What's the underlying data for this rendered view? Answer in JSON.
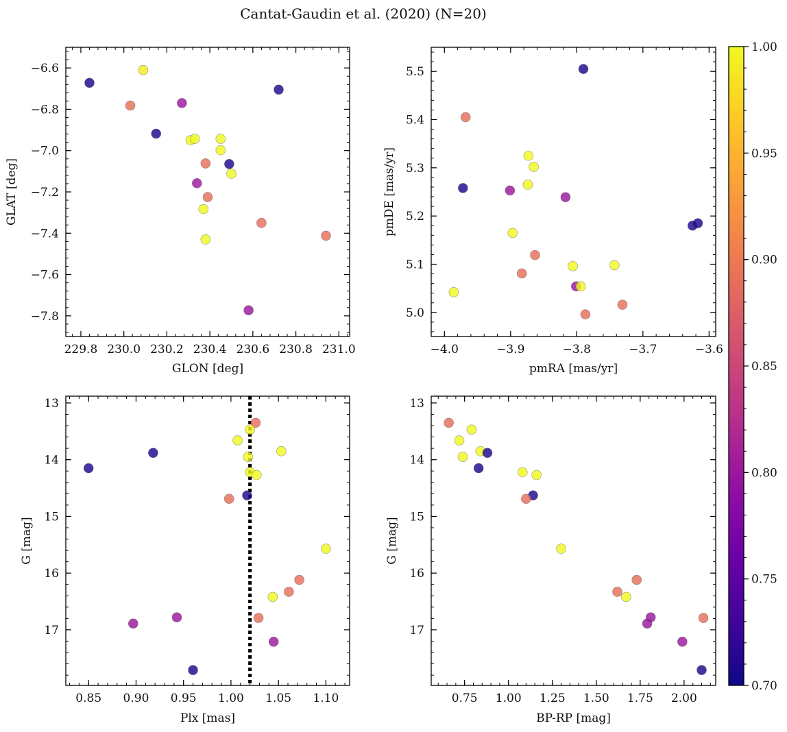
{
  "figure": {
    "title": "Cantat-Gaudin et al. (2020) (N=20)"
  },
  "colorbar": {
    "ticks": [
      0.7,
      0.75,
      0.8,
      0.85,
      0.9,
      0.95,
      1.0
    ],
    "tick_labels": [
      "0.70",
      "0.75",
      "0.80",
      "0.85",
      "0.90",
      "0.95",
      "1.00"
    ],
    "range": [
      0.7,
      1.0
    ],
    "colormap": "plasma"
  },
  "chart_data": [
    {
      "id": "glon-glat",
      "type": "scatter",
      "xlabel": "GLON [deg]",
      "ylabel": "GLAT [deg]",
      "xlim": [
        229.73,
        231.05
      ],
      "ylim": [
        -7.9,
        -6.5
      ],
      "y_inverted": false,
      "xticks": [
        229.8,
        230.0,
        230.2,
        230.4,
        230.6,
        230.8,
        231.0
      ],
      "xtick_labels": [
        "229.8",
        "230.0",
        "230.2",
        "230.4",
        "230.6",
        "230.8",
        "231.0"
      ],
      "yticks": [
        -7.8,
        -7.6,
        -7.4,
        -7.2,
        -7.0,
        -6.8,
        -6.6
      ],
      "ytick_labels": [
        "−7.8",
        "−7.6",
        "−7.4",
        "−7.2",
        "−7.0",
        "−6.8",
        "−6.6"
      ],
      "points": [
        {
          "x": 229.84,
          "y": -6.672,
          "c": 0.71
        },
        {
          "x": 230.09,
          "y": -6.61,
          "c": 0.99
        },
        {
          "x": 230.03,
          "y": -6.782,
          "c": 0.89
        },
        {
          "x": 230.27,
          "y": -6.77,
          "c": 0.8
        },
        {
          "x": 230.15,
          "y": -6.918,
          "c": 0.71
        },
        {
          "x": 230.72,
          "y": -6.705,
          "c": 0.71
        },
        {
          "x": 230.31,
          "y": -6.95,
          "c": 1.0
        },
        {
          "x": 230.33,
          "y": -6.943,
          "c": 1.0
        },
        {
          "x": 230.45,
          "y": -6.943,
          "c": 1.0
        },
        {
          "x": 230.45,
          "y": -6.998,
          "c": 1.0
        },
        {
          "x": 230.38,
          "y": -7.062,
          "c": 0.89
        },
        {
          "x": 230.49,
          "y": -7.065,
          "c": 0.71
        },
        {
          "x": 230.5,
          "y": -7.112,
          "c": 1.0
        },
        {
          "x": 230.34,
          "y": -7.158,
          "c": 0.8
        },
        {
          "x": 230.39,
          "y": -7.225,
          "c": 0.89
        },
        {
          "x": 230.37,
          "y": -7.283,
          "c": 1.0
        },
        {
          "x": 230.38,
          "y": -7.43,
          "c": 1.0
        },
        {
          "x": 230.64,
          "y": -7.35,
          "c": 0.89
        },
        {
          "x": 230.94,
          "y": -7.412,
          "c": 0.89
        },
        {
          "x": 230.58,
          "y": -7.773,
          "c": 0.8
        }
      ]
    },
    {
      "id": "pmra-pmde",
      "type": "scatter",
      "xlabel": "pmRA [mas/yr]",
      "ylabel": "pmDE [mas/yr]",
      "xlim": [
        -4.02,
        -3.59
      ],
      "ylim": [
        4.95,
        5.55
      ],
      "y_inverted": false,
      "xticks": [
        -4.0,
        -3.9,
        -3.8,
        -3.7,
        -3.6
      ],
      "xtick_labels": [
        "−4.0",
        "−3.9",
        "−3.8",
        "−3.7",
        "−3.6"
      ],
      "yticks": [
        5.0,
        5.1,
        5.2,
        5.3,
        5.4,
        5.5
      ],
      "ytick_labels": [
        "5.0",
        "5.1",
        "5.2",
        "5.3",
        "5.4",
        "5.5"
      ],
      "points": [
        {
          "x": -3.79,
          "y": 5.505,
          "c": 0.71
        },
        {
          "x": -3.968,
          "y": 5.405,
          "c": 0.89
        },
        {
          "x": -3.873,
          "y": 5.325,
          "c": 1.0
        },
        {
          "x": -3.865,
          "y": 5.302,
          "c": 1.0
        },
        {
          "x": -3.874,
          "y": 5.265,
          "c": 1.0
        },
        {
          "x": -3.972,
          "y": 5.258,
          "c": 0.71
        },
        {
          "x": -3.901,
          "y": 5.253,
          "c": 0.8
        },
        {
          "x": -3.817,
          "y": 5.239,
          "c": 0.8
        },
        {
          "x": -3.617,
          "y": 5.185,
          "c": 0.71
        },
        {
          "x": -3.625,
          "y": 5.18,
          "c": 0.71
        },
        {
          "x": -3.897,
          "y": 5.165,
          "c": 1.0
        },
        {
          "x": -3.863,
          "y": 5.119,
          "c": 0.89
        },
        {
          "x": -3.806,
          "y": 5.096,
          "c": 1.0
        },
        {
          "x": -3.743,
          "y": 5.098,
          "c": 1.0
        },
        {
          "x": -3.883,
          "y": 5.081,
          "c": 0.89
        },
        {
          "x": -3.801,
          "y": 5.054,
          "c": 0.8
        },
        {
          "x": -3.794,
          "y": 5.054,
          "c": 1.0
        },
        {
          "x": -3.986,
          "y": 5.042,
          "c": 1.0
        },
        {
          "x": -3.731,
          "y": 5.016,
          "c": 0.89
        },
        {
          "x": -3.787,
          "y": 4.996,
          "c": 0.89
        }
      ]
    },
    {
      "id": "plx-g",
      "type": "scatter",
      "xlabel": "Plx [mas]",
      "ylabel": "G [mag]",
      "xlim": [
        0.826,
        1.125
      ],
      "ylim": [
        17.98,
        12.88
      ],
      "y_inverted": true,
      "xticks": [
        0.85,
        0.9,
        0.95,
        1.0,
        1.05,
        1.1
      ],
      "xtick_labels": [
        "0.85",
        "0.90",
        "0.95",
        "1.00",
        "1.05",
        "1.10"
      ],
      "yticks": [
        13,
        14,
        15,
        16,
        17
      ],
      "ytick_labels": [
        "13",
        "14",
        "15",
        "16",
        "17"
      ],
      "vline": {
        "x": 1.02,
        "style": "dotted"
      },
      "points": [
        {
          "x": 1.026,
          "y": 13.35,
          "c": 0.89
        },
        {
          "x": 1.02,
          "y": 13.47,
          "c": 1.0
        },
        {
          "x": 1.007,
          "y": 13.66,
          "c": 1.0
        },
        {
          "x": 0.918,
          "y": 13.88,
          "c": 0.71
        },
        {
          "x": 1.053,
          "y": 13.85,
          "c": 1.0
        },
        {
          "x": 1.018,
          "y": 13.95,
          "c": 1.0
        },
        {
          "x": 0.85,
          "y": 14.15,
          "c": 0.71
        },
        {
          "x": 1.02,
          "y": 14.22,
          "c": 1.0
        },
        {
          "x": 1.027,
          "y": 14.27,
          "c": 1.0
        },
        {
          "x": 1.017,
          "y": 14.63,
          "c": 0.71
        },
        {
          "x": 0.998,
          "y": 14.69,
          "c": 0.89
        },
        {
          "x": 1.1,
          "y": 15.57,
          "c": 1.0
        },
        {
          "x": 1.072,
          "y": 16.12,
          "c": 0.89
        },
        {
          "x": 1.061,
          "y": 16.33,
          "c": 0.89
        },
        {
          "x": 1.044,
          "y": 16.42,
          "c": 1.0
        },
        {
          "x": 0.943,
          "y": 16.78,
          "c": 0.8
        },
        {
          "x": 1.029,
          "y": 16.79,
          "c": 0.89
        },
        {
          "x": 0.897,
          "y": 16.89,
          "c": 0.8
        },
        {
          "x": 1.045,
          "y": 17.21,
          "c": 0.8
        },
        {
          "x": 0.96,
          "y": 17.71,
          "c": 0.71
        }
      ]
    },
    {
      "id": "bprp-g",
      "type": "scatter",
      "xlabel": "BP-RP [mag]",
      "ylabel": "G [mag]",
      "xlim": [
        0.56,
        2.18
      ],
      "ylim": [
        17.98,
        12.88
      ],
      "y_inverted": true,
      "xticks": [
        0.75,
        1.0,
        1.25,
        1.5,
        1.75,
        2.0
      ],
      "xtick_labels": [
        "0.75",
        "1.00",
        "1.25",
        "1.50",
        "1.75",
        "2.00"
      ],
      "yticks": [
        13,
        14,
        15,
        16,
        17
      ],
      "ytick_labels": [
        "13",
        "14",
        "15",
        "16",
        "17"
      ],
      "points": [
        {
          "x": 0.66,
          "y": 13.35,
          "c": 0.89
        },
        {
          "x": 0.79,
          "y": 13.47,
          "c": 1.0
        },
        {
          "x": 0.72,
          "y": 13.66,
          "c": 1.0
        },
        {
          "x": 0.84,
          "y": 13.85,
          "c": 1.0
        },
        {
          "x": 0.88,
          "y": 13.88,
          "c": 0.71
        },
        {
          "x": 0.74,
          "y": 13.95,
          "c": 1.0
        },
        {
          "x": 0.83,
          "y": 14.15,
          "c": 0.71
        },
        {
          "x": 1.08,
          "y": 14.22,
          "c": 1.0
        },
        {
          "x": 1.16,
          "y": 14.27,
          "c": 1.0
        },
        {
          "x": 1.14,
          "y": 14.63,
          "c": 0.71
        },
        {
          "x": 1.1,
          "y": 14.69,
          "c": 0.89
        },
        {
          "x": 1.3,
          "y": 15.57,
          "c": 1.0
        },
        {
          "x": 1.73,
          "y": 16.12,
          "c": 0.89
        },
        {
          "x": 1.62,
          "y": 16.33,
          "c": 0.89
        },
        {
          "x": 1.67,
          "y": 16.42,
          "c": 1.0
        },
        {
          "x": 1.81,
          "y": 16.78,
          "c": 0.8
        },
        {
          "x": 2.11,
          "y": 16.79,
          "c": 0.89
        },
        {
          "x": 1.79,
          "y": 16.89,
          "c": 0.8
        },
        {
          "x": 1.99,
          "y": 17.21,
          "c": 0.8
        },
        {
          "x": 2.1,
          "y": 17.71,
          "c": 0.71
        }
      ]
    }
  ]
}
